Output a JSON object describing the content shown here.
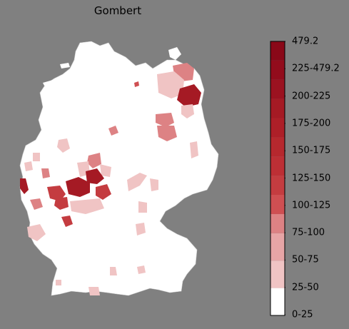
{
  "title": "Gombert",
  "legend": {
    "labels": [
      "0-25",
      "25-50",
      "50-75",
      "75-100",
      "100-125",
      "125-150",
      "150-175",
      "175-200",
      "200-225",
      "225-479.2",
      "479.2"
    ],
    "band_colors": [
      "#ffffff",
      "#f0c4c4",
      "#e7a5a6",
      "#dd8284",
      "#cf4f52",
      "#c43c40",
      "#bd2f35",
      "#b6282e",
      "#ad1f28",
      "#a51a24",
      "#9b1220",
      "#920c1c",
      "#8a0818"
    ],
    "band_fractions": [
      0.1,
      0.1,
      0.1,
      0.1,
      0.1,
      0.1,
      0.1,
      0.1,
      0.1,
      0.1
    ]
  },
  "chart_data": {
    "type": "choropleth",
    "region": "Germany (districts)",
    "title": "Gombert",
    "scale_bins": [
      "0-25",
      "25-50",
      "50-75",
      "75-100",
      "100-125",
      "125-150",
      "150-175",
      "175-200",
      "200-225",
      "225-479.2"
    ],
    "max_value": 479.2,
    "highlighted_areas": [
      {
        "area": "north-east (upper)",
        "bin": "50-75"
      },
      {
        "area": "north-east",
        "bin": "225-479.2"
      },
      {
        "area": "north-east (lower)",
        "bin": "25-50"
      },
      {
        "area": "east-central",
        "bin": "50-75"
      },
      {
        "area": "west (Ruhr/Rhineland)",
        "bin": "225-479.2"
      },
      {
        "area": "west (Hesse west)",
        "bin": "125-150"
      },
      {
        "area": "west border",
        "bin": "200-225"
      },
      {
        "area": "central",
        "bin": "25-50"
      },
      {
        "area": "south-west",
        "bin": "25-50"
      },
      {
        "area": "south",
        "bin": "25-50"
      }
    ]
  }
}
